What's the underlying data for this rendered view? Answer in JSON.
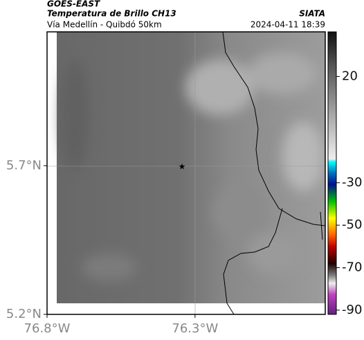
{
  "header": {
    "title": "GOES-EAST",
    "subtitle": "Temperatura de Brillo CH13",
    "location": "Vía Medellín - Quibdó 50km",
    "source": "SIATA",
    "timestamp": "2024-04-11 18:39"
  },
  "map": {
    "xlim": [
      -76.8,
      -75.86
    ],
    "ylim": [
      5.2,
      6.15
    ],
    "xticks": [
      {
        "value": -76.8,
        "label": "76.8°W"
      },
      {
        "value": -76.3,
        "label": "76.3°W"
      }
    ],
    "yticks": [
      {
        "value": 5.2,
        "label": "5.2°N"
      },
      {
        "value": 5.7,
        "label": "5.7°N"
      }
    ]
  },
  "colorbar": {
    "clim": [
      -92,
      41
    ],
    "ticks": [
      20,
      -30,
      -50,
      -70,
      -90
    ]
  }
}
